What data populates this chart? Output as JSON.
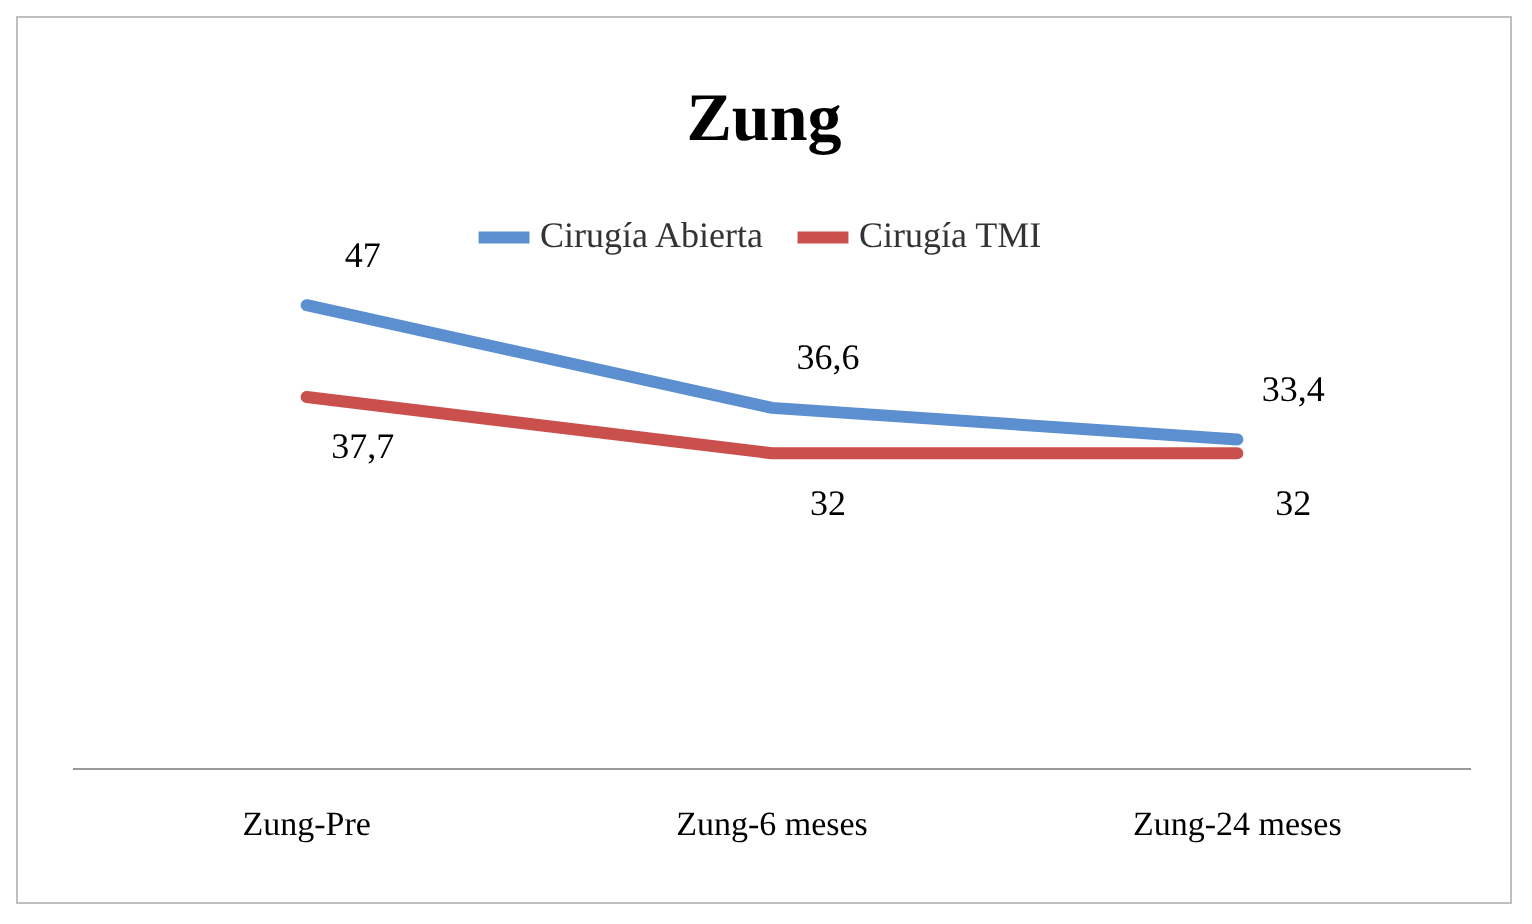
{
  "chart_data": {
    "type": "line",
    "title": "Zung",
    "categories": [
      "Zung-Pre",
      "Zung-6 meses",
      "Zung-24 meses"
    ],
    "series": [
      {
        "name": "Cirugía Abierta",
        "color": "#5b8fcf",
        "values": [
          47,
          36.6,
          33.4
        ],
        "value_labels": [
          "47",
          "36,6",
          "33,4"
        ]
      },
      {
        "name": "Cirugía TMI",
        "color": "#c9504c",
        "values": [
          37.7,
          32,
          32
        ],
        "value_labels": [
          "37,7",
          "32",
          "32"
        ]
      }
    ],
    "relative": false,
    "legend": "top",
    "grid": false,
    "marker": "none",
    "line_style": "solid"
  }
}
